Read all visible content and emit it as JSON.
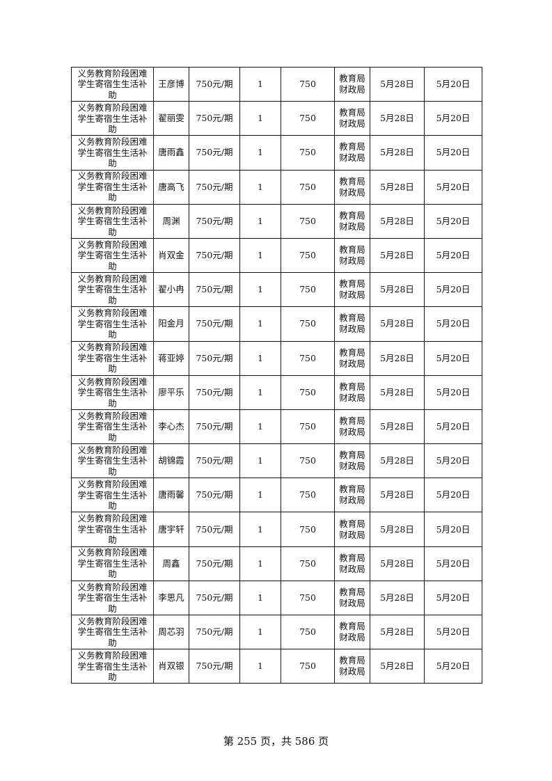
{
  "table": {
    "program": "义务教育阶段困难学生寄宿生生活补助",
    "rate": "750元/期",
    "count": "1",
    "amount": "750",
    "department": "教育局财政局",
    "date1": "5月28日",
    "date2": "5月20日",
    "names": [
      "王彦博",
      "翟丽雯",
      "唐雨鑫",
      "唐高飞",
      "周渊",
      "肖双金",
      "翟小冉",
      "阳金月",
      "蒋亚婷",
      "廖平乐",
      "李心杰",
      "胡锦霞",
      "唐雨馨",
      "唐宇轩",
      "周鑫",
      "李思凡",
      "周芯羽",
      "肖双银"
    ]
  },
  "footer": {
    "page_text": "第 255 页，共 586 页"
  }
}
